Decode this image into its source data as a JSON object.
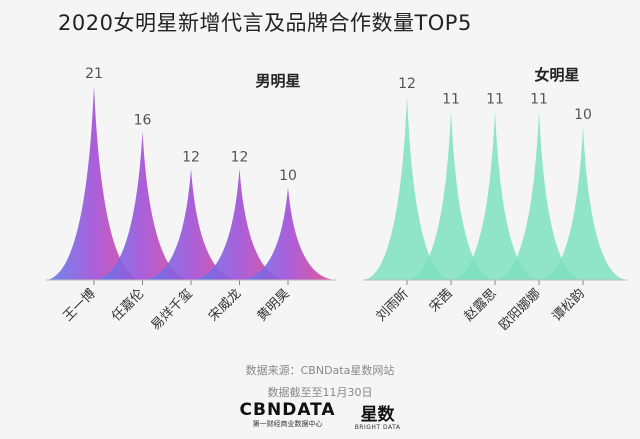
{
  "title": "2020女明星新增代言及品牌合作数量TOP5",
  "source_text": "数据来源：CBNData星数网站",
  "cutoff_text": "数据截至至11月30日",
  "logo": {
    "cbn_main": "CBNDATA",
    "cbn_sub": "第一财经商业数据中心",
    "xs_main": "星数",
    "xs_sub": "BRIGHT DATA"
  },
  "colors": {
    "male_start": "#5b7ff0",
    "male_mid": "#a14fd6",
    "male_end": "#e6488f",
    "female": "#7ee0c0"
  },
  "chart_data": [
    {
      "type": "area",
      "title": "男明星",
      "categories": [
        "王一博",
        "任嘉伦",
        "易烊千玺",
        "宋威龙",
        "黄明昊"
      ],
      "values": [
        21,
        16,
        12,
        12,
        10
      ],
      "ylim": [
        0,
        21
      ]
    },
    {
      "type": "area",
      "title": "女明星",
      "categories": [
        "刘雨昕",
        "宋茜",
        "赵露思",
        "欧阳娜娜",
        "谭松韵"
      ],
      "values": [
        12,
        11,
        11,
        11,
        10
      ],
      "ylim": [
        0,
        12
      ]
    }
  ]
}
